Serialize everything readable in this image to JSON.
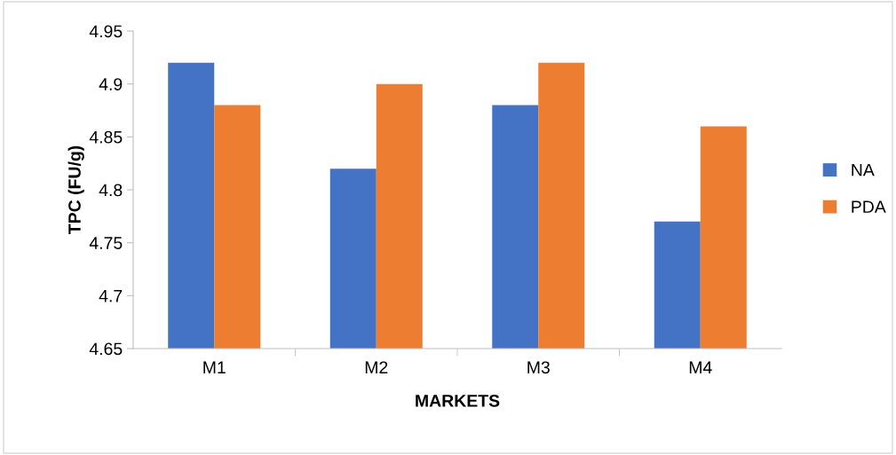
{
  "chart_data": {
    "type": "bar",
    "xlabel": "MARKETS",
    "ylabel": "TPC (FU/g)",
    "categories": [
      "M1",
      "M2",
      "M3",
      "M4"
    ],
    "series": [
      {
        "name": "NA",
        "color": "#4472c4",
        "values": [
          4.92,
          4.82,
          4.88,
          4.77
        ]
      },
      {
        "name": "PDA",
        "color": "#ed7d31",
        "values": [
          4.88,
          4.9,
          4.92,
          4.86
        ]
      }
    ],
    "ylim": [
      4.65,
      4.95
    ],
    "yticks": [
      4.65,
      4.7,
      4.75,
      4.8,
      4.85,
      4.9,
      4.95
    ],
    "grid": false,
    "legend": "right"
  }
}
